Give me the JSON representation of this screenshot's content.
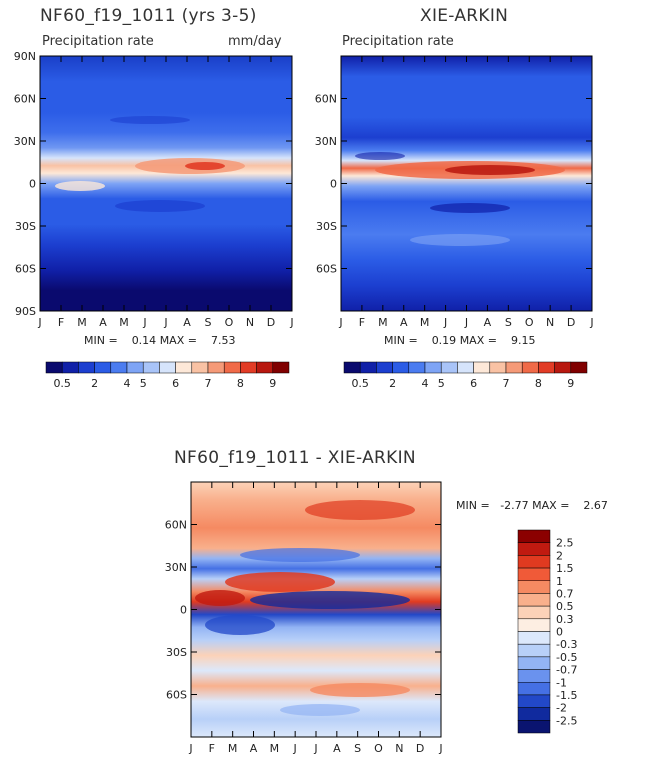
{
  "panel1": {
    "title": "NF60_f19_1011 (yrs 3-5)",
    "subtitle": "Precipitation rate",
    "units": "mm/day",
    "min_label": "MIN =",
    "min_value": "0.14",
    "max_label": "MAX =",
    "max_value": "7.53"
  },
  "panel2": {
    "title": "XIE-ARKIN",
    "subtitle": "Precipitation rate",
    "min_label": "MIN =",
    "min_value": "0.19",
    "max_label": "MAX =",
    "max_value": "9.15"
  },
  "panel3": {
    "title": "NF60_f19_1011 - XIE-ARKIN",
    "min_label": "MIN =",
    "min_value": "-2.77",
    "max_label": "MAX =",
    "max_value": "2.67"
  },
  "axes": {
    "months": [
      "J",
      "F",
      "M",
      "A",
      "M",
      "J",
      "J",
      "A",
      "S",
      "O",
      "N",
      "D",
      "J"
    ],
    "lat_labels_full": [
      "90N",
      "60N",
      "30N",
      "0",
      "30S",
      "60S",
      "90S"
    ],
    "lat_labels_inner": [
      "60N",
      "30N",
      "0",
      "30S",
      "60S"
    ]
  },
  "colorbar_abs": {
    "labels": [
      "0.5",
      "2",
      "4",
      "5",
      "6",
      "7",
      "8",
      "9"
    ],
    "colors": [
      "#0a0a6e",
      "#1020a8",
      "#1c3fd0",
      "#2b5ce6",
      "#4b7cf0",
      "#7ea4f5",
      "#a9c4f8",
      "#d6e4fb",
      "#fde8d8",
      "#f9c2a4",
      "#f59a78",
      "#f06a48",
      "#e23c26",
      "#b8180f",
      "#800000"
    ]
  },
  "colorbar_diff": {
    "labels": [
      "2.5",
      "2",
      "1.5",
      "1",
      "0.7",
      "0.5",
      "0.3",
      "0",
      "-0.3",
      "-0.5",
      "-0.7",
      "-1",
      "-1.5",
      "-2",
      "-2.5"
    ],
    "colors": [
      "#8b0000",
      "#c01a10",
      "#e03a20",
      "#f05a38",
      "#f58a62",
      "#f9b08c",
      "#fcd2b8",
      "#fdeee2",
      "#dce8fb",
      "#b8d0f8",
      "#93b4f4",
      "#6a92ee",
      "#4570e4",
      "#2248c8",
      "#102a9e",
      "#0a1470"
    ]
  },
  "chart_data": [
    {
      "type": "heatmap",
      "title": "NF60_f19_1011 (yrs 3-5)",
      "subtitle": "Precipitation rate",
      "units": "mm/day",
      "x": [
        "J",
        "F",
        "M",
        "A",
        "M",
        "J",
        "J",
        "A",
        "S",
        "O",
        "N",
        "D",
        "J"
      ],
      "y_ticks": [
        "90N",
        "60N",
        "30N",
        "0",
        "30S",
        "60S",
        "90S"
      ],
      "min": 0.14,
      "max": 7.53
    },
    {
      "type": "heatmap",
      "title": "XIE-ARKIN",
      "subtitle": "Precipitation rate",
      "x": [
        "J",
        "F",
        "M",
        "A",
        "M",
        "J",
        "J",
        "A",
        "S",
        "O",
        "N",
        "D",
        "J"
      ],
      "y_ticks": [
        "60N",
        "30N",
        "0",
        "30S",
        "60S"
      ],
      "min": 0.19,
      "max": 9.15
    },
    {
      "type": "heatmap",
      "title": "NF60_f19_1011 - XIE-ARKIN",
      "x": [
        "J",
        "F",
        "M",
        "A",
        "M",
        "J",
        "J",
        "A",
        "S",
        "O",
        "N",
        "D",
        "J"
      ],
      "y_ticks": [
        "60N",
        "30N",
        "0",
        "30S",
        "60S"
      ],
      "min": -2.77,
      "max": 2.67,
      "levels": [
        -2.5,
        -2,
        -1.5,
        -1,
        -0.7,
        -0.5,
        -0.3,
        0,
        0.3,
        0.5,
        0.7,
        1,
        1.5,
        2,
        2.5
      ]
    }
  ]
}
